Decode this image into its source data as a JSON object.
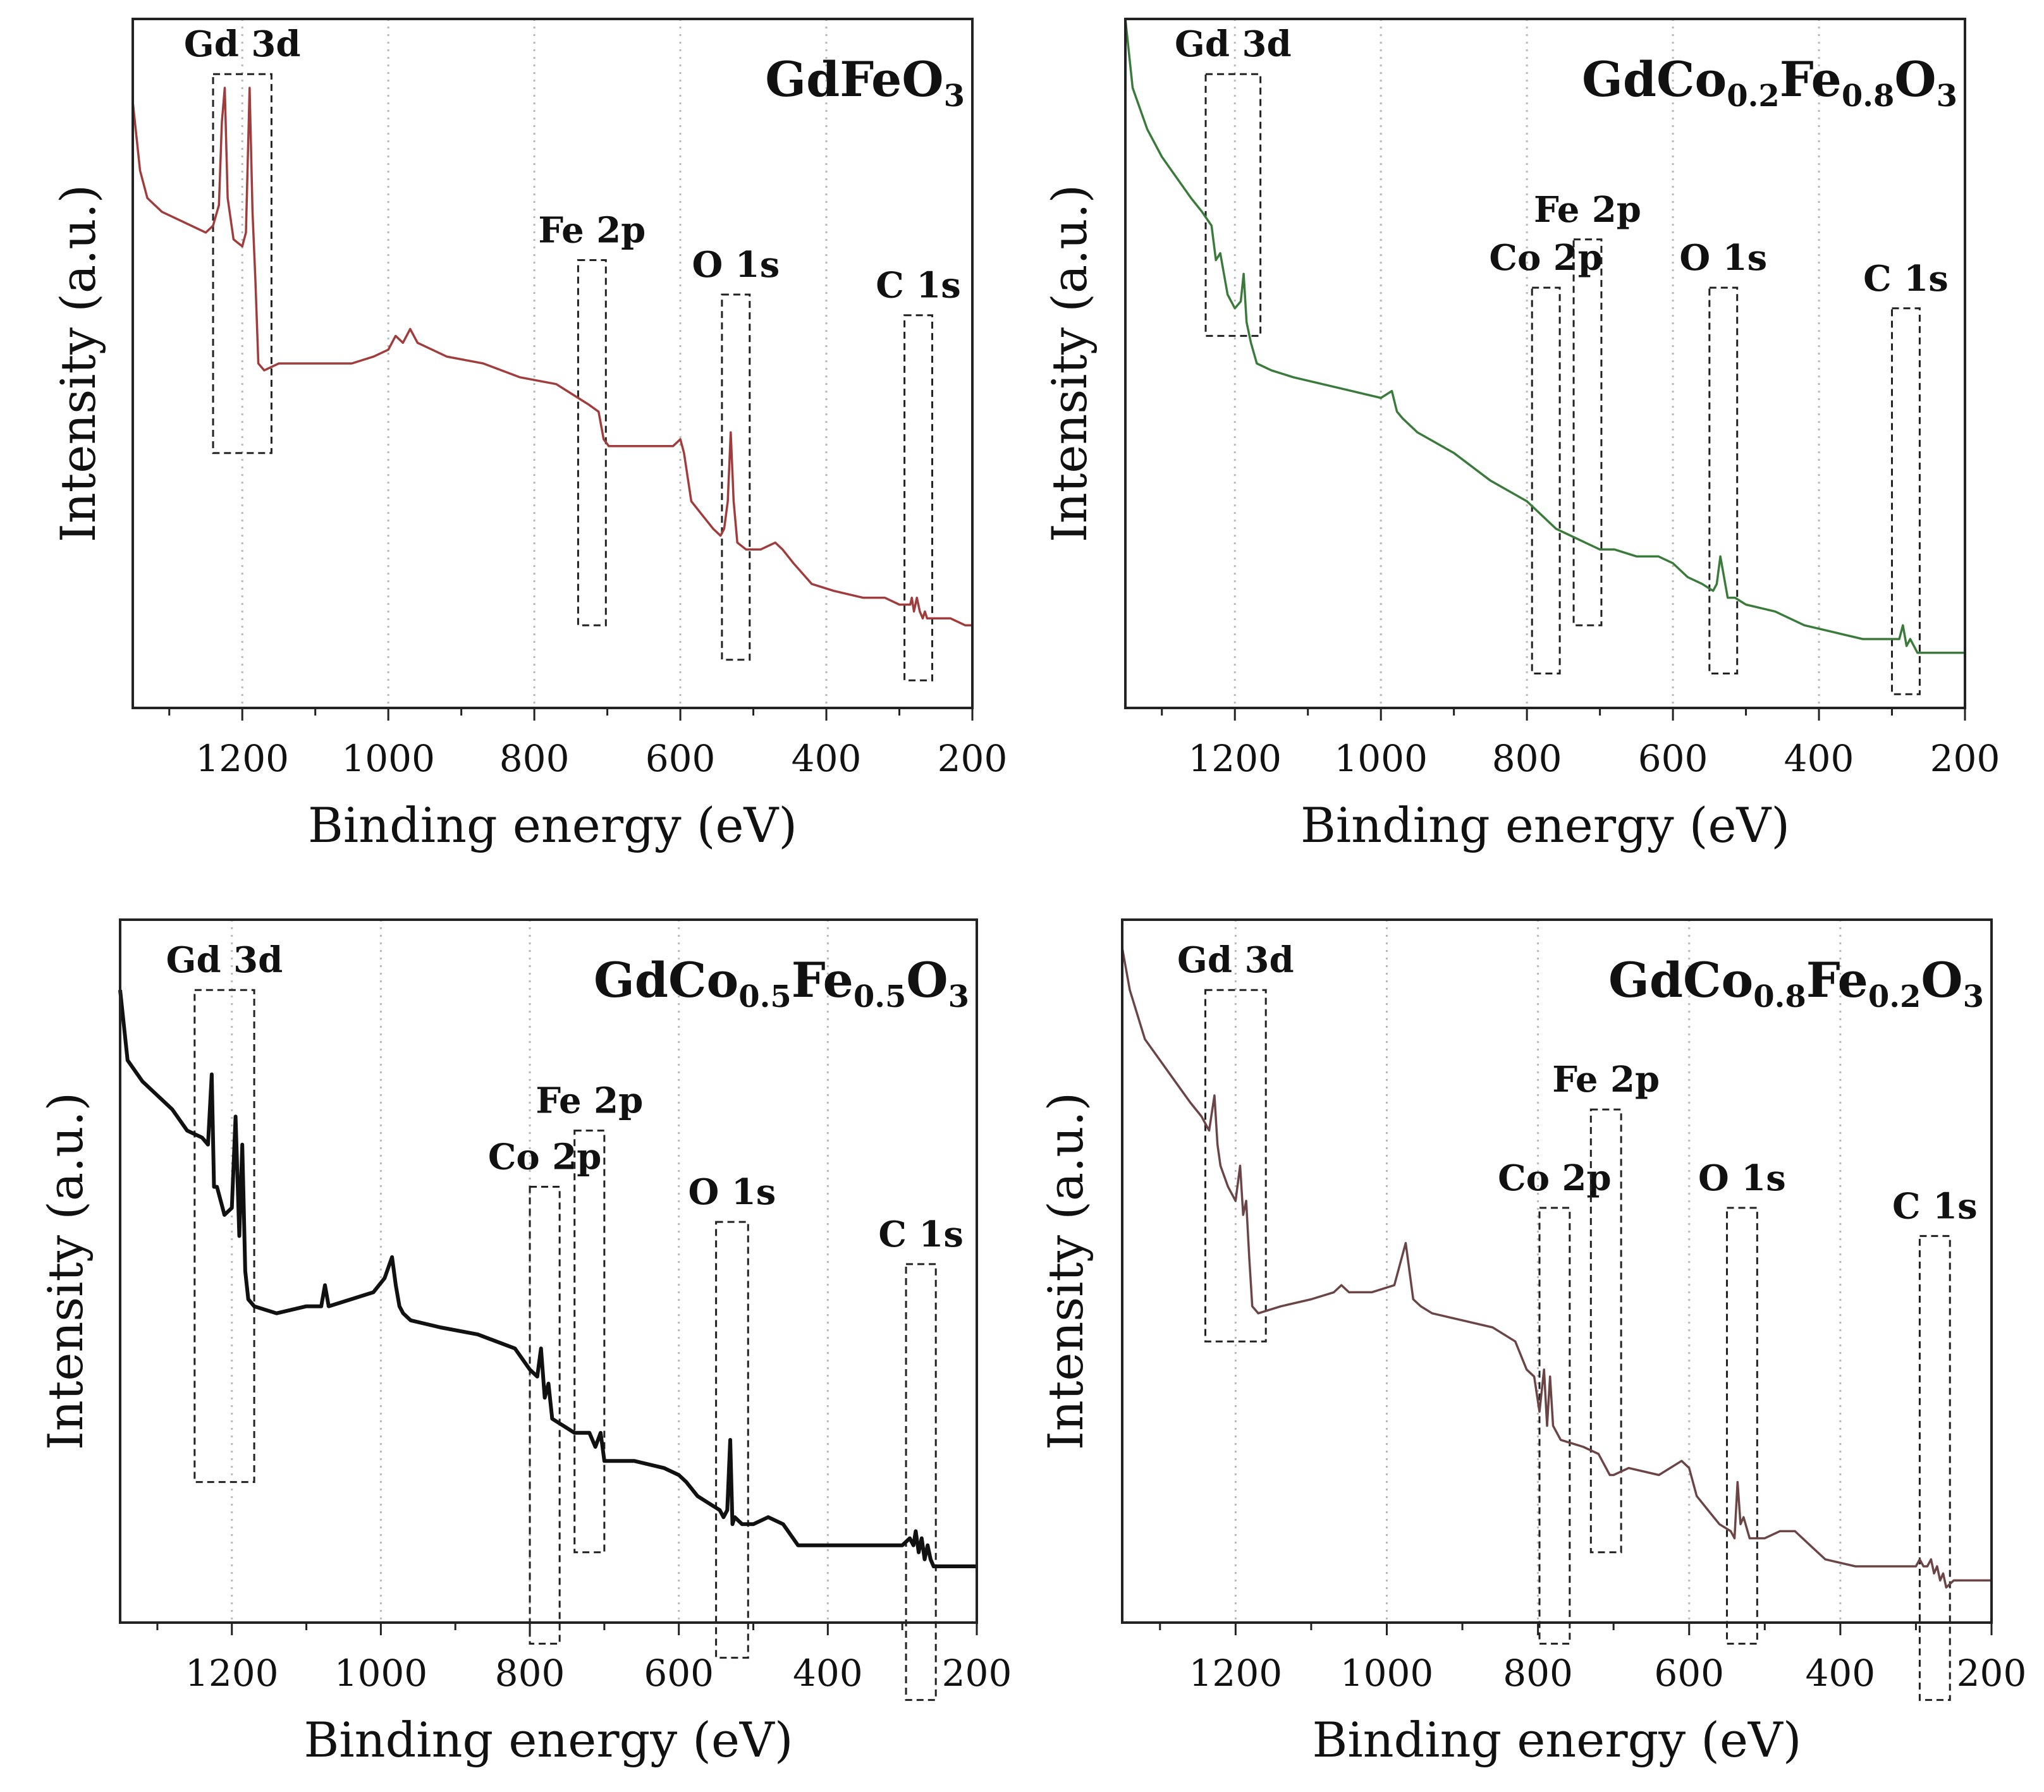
{
  "figure": {
    "xlabel": "Binding energy (eV)",
    "ylabel": "Intensity (a.u.)"
  },
  "chart_data": [
    {
      "type": "line",
      "title": "GdFeO3",
      "title_parts": [
        [
          "Gd",
          ""
        ],
        [
          "FeO",
          ""
        ],
        [
          "3",
          "sub"
        ]
      ],
      "color": "#a03c3c",
      "xlabel": "Binding energy (eV)",
      "ylabel": "Intensity (a.u.)",
      "xlim": [
        1350,
        200
      ],
      "ylim": [
        0,
        100
      ],
      "xticks": [
        1200,
        1000,
        800,
        600,
        400,
        200
      ],
      "grid": "vertical dotted",
      "x": [
        1350,
        1340,
        1330,
        1310,
        1290,
        1270,
        1250,
        1240,
        1232,
        1228,
        1224,
        1220,
        1212,
        1200,
        1195,
        1190,
        1186,
        1182,
        1178,
        1170,
        1150,
        1100,
        1050,
        1020,
        1000,
        990,
        980,
        970,
        960,
        920,
        870,
        820,
        770,
        740,
        725,
        712,
        705,
        698,
        660,
        630,
        610,
        600,
        595,
        585,
        570,
        555,
        545,
        540,
        535,
        531,
        527,
        522,
        510,
        490,
        470,
        460,
        445,
        420,
        390,
        350,
        320,
        300,
        290,
        285,
        283,
        280,
        276,
        272,
        268,
        265,
        262,
        258,
        250,
        230,
        210,
        200
      ],
      "values": [
        88,
        78,
        74,
        72,
        71,
        70,
        69,
        70,
        73,
        85,
        90,
        74,
        68,
        67,
        69,
        90,
        72,
        62,
        50,
        49,
        50,
        50,
        50,
        51,
        52,
        54,
        53,
        55,
        53,
        51,
        50,
        48,
        47,
        45,
        44,
        43,
        39,
        38,
        38,
        38,
        38,
        39,
        37,
        30,
        28,
        26,
        25,
        26,
        30,
        40,
        30,
        24,
        23,
        23,
        24,
        23,
        21,
        18,
        17,
        16,
        16,
        15,
        15,
        15,
        16,
        14,
        16,
        14,
        13,
        14,
        13,
        13,
        13,
        13,
        12,
        12
      ],
      "annotations": [
        {
          "label": "Gd 3d",
          "x_range": [
            1240,
            1160
          ],
          "y_range": [
            37,
            92
          ]
        },
        {
          "label": "Fe 2p",
          "x_range": [
            740,
            702
          ],
          "y_range": [
            12,
            65
          ]
        },
        {
          "label": "O 1s",
          "x_range": [
            543,
            505
          ],
          "y_range": [
            7,
            60
          ]
        },
        {
          "label": "C 1s",
          "x_range": [
            293,
            255
          ],
          "y_range": [
            4,
            57
          ]
        }
      ]
    },
    {
      "type": "line",
      "title": "GdCo0.2Fe0.8O3",
      "title_parts": [
        [
          "GdCo",
          ""
        ],
        [
          "0.2",
          "sub"
        ],
        [
          "Fe",
          ""
        ],
        [
          "0.8",
          "sub"
        ],
        [
          "O",
          ""
        ],
        [
          "3",
          "sub"
        ]
      ],
      "color": "#3a7a3a",
      "xlabel": "Binding energy (eV)",
      "ylabel": "Intensity (a.u.)",
      "xlim": [
        1350,
        200
      ],
      "ylim": [
        0,
        100
      ],
      "xticks": [
        1200,
        1000,
        800,
        600,
        400,
        200
      ],
      "grid": "vertical dotted",
      "x": [
        1350,
        1340,
        1320,
        1300,
        1280,
        1260,
        1245,
        1232,
        1226,
        1220,
        1210,
        1200,
        1192,
        1188,
        1184,
        1178,
        1170,
        1150,
        1120,
        1080,
        1040,
        1000,
        985,
        978,
        970,
        950,
        900,
        850,
        800,
        780,
        760,
        740,
        720,
        700,
        680,
        650,
        620,
        600,
        580,
        560,
        545,
        540,
        535,
        530,
        525,
        515,
        500,
        460,
        420,
        380,
        340,
        300,
        290,
        285,
        280,
        275,
        270,
        265,
        250,
        230,
        200
      ],
      "values": [
        100,
        90,
        84,
        80,
        77,
        74,
        72,
        70,
        65,
        66,
        60,
        58,
        59,
        63,
        56,
        53,
        50,
        49,
        48,
        47,
        46,
        45,
        46,
        43,
        42,
        40,
        37,
        33,
        30,
        28,
        26,
        25,
        24,
        23,
        23,
        22,
        22,
        21,
        19,
        18,
        17,
        18,
        22,
        19,
        16,
        16,
        15,
        14,
        12,
        11,
        10,
        10,
        10,
        12,
        9,
        10,
        9,
        8,
        8,
        8,
        8
      ],
      "annotations": [
        {
          "label": "Gd 3d",
          "x_range": [
            1240,
            1165
          ],
          "y_range": [
            54,
            92
          ]
        },
        {
          "label": "Co 2p",
          "x_range": [
            793,
            755
          ],
          "y_range": [
            5,
            61
          ]
        },
        {
          "label": "Fe 2p",
          "x_range": [
            736,
            698
          ],
          "y_range": [
            12,
            68
          ]
        },
        {
          "label": "O 1s",
          "x_range": [
            550,
            512
          ],
          "y_range": [
            5,
            61
          ]
        },
        {
          "label": "C 1s",
          "x_range": [
            300,
            262
          ],
          "y_range": [
            2,
            58
          ]
        }
      ]
    },
    {
      "type": "line",
      "title": "GdCo0.5Fe0.5O3",
      "title_parts": [
        [
          "GdCo",
          ""
        ],
        [
          "0.5",
          "sub"
        ],
        [
          "Fe",
          ""
        ],
        [
          "0.5",
          "sub"
        ],
        [
          "O",
          ""
        ],
        [
          "3",
          "sub"
        ]
      ],
      "color": "#111111",
      "xlabel": "Binding energy (eV)",
      "ylabel": "Intensity (a.u.)",
      "xlim": [
        1350,
        200
      ],
      "ylim": [
        0,
        100
      ],
      "xticks": [
        1200,
        1000,
        800,
        600,
        400,
        200
      ],
      "grid": "vertical dotted",
      "x": [
        1350,
        1340,
        1320,
        1300,
        1280,
        1260,
        1240,
        1232,
        1227,
        1224,
        1220,
        1210,
        1200,
        1195,
        1190,
        1186,
        1182,
        1178,
        1170,
        1140,
        1100,
        1080,
        1075,
        1070,
        1040,
        1010,
        995,
        985,
        980,
        975,
        970,
        960,
        920,
        870,
        820,
        800,
        790,
        785,
        780,
        775,
        770,
        740,
        720,
        712,
        705,
        700,
        660,
        620,
        600,
        590,
        575,
        560,
        545,
        540,
        535,
        531,
        528,
        525,
        515,
        500,
        480,
        460,
        440,
        410,
        380,
        340,
        300,
        290,
        285,
        282,
        278,
        274,
        270,
        266,
        262,
        258,
        240,
        200
      ],
      "values": [
        90,
        80,
        77,
        75,
        73,
        70,
        69,
        68,
        78,
        62,
        62,
        58,
        59,
        72,
        55,
        68,
        50,
        46,
        45,
        44,
        45,
        45,
        48,
        45,
        46,
        47,
        49,
        52,
        48,
        45,
        44,
        43,
        42,
        41,
        39,
        36,
        35,
        39,
        32,
        34,
        29,
        27,
        27,
        25,
        27,
        23,
        23,
        22,
        21,
        20,
        18,
        17,
        16,
        15,
        16,
        26,
        14,
        15,
        14,
        14,
        15,
        14,
        11,
        11,
        11,
        11,
        11,
        12,
        11,
        13,
        10,
        12,
        9,
        11,
        9,
        8,
        8,
        8
      ],
      "annotations": [
        {
          "label": "Gd 3d",
          "x_range": [
            1250,
            1170
          ],
          "y_range": [
            20,
            90
          ]
        },
        {
          "label": "Co 2p",
          "x_range": [
            800,
            760
          ],
          "y_range": [
            -3,
            62
          ]
        },
        {
          "label": "Fe 2p",
          "x_range": [
            740,
            700
          ],
          "y_range": [
            10,
            70
          ]
        },
        {
          "label": "O 1s",
          "x_range": [
            550,
            507
          ],
          "y_range": [
            -5,
            57
          ]
        },
        {
          "label": "C 1s",
          "x_range": [
            295,
            255
          ],
          "y_range": [
            -11,
            51
          ]
        }
      ]
    },
    {
      "type": "line",
      "title": "GdCo0.8Fe0.2O3",
      "title_parts": [
        [
          "GdCo",
          ""
        ],
        [
          "0.8",
          "sub"
        ],
        [
          "Fe",
          ""
        ],
        [
          "0.2",
          "sub"
        ],
        [
          "O",
          ""
        ],
        [
          "3",
          "sub"
        ]
      ],
      "color": "#6b4545",
      "xlabel": "Binding energy (eV)",
      "ylabel": "Intensity (a.u.)",
      "xlim": [
        1350,
        200
      ],
      "ylim": [
        0,
        100
      ],
      "xticks": [
        1200,
        1000,
        800,
        600,
        400,
        200
      ],
      "grid": "vertical dotted",
      "x": [
        1350,
        1340,
        1320,
        1300,
        1280,
        1260,
        1245,
        1235,
        1228,
        1224,
        1220,
        1210,
        1200,
        1194,
        1190,
        1186,
        1182,
        1178,
        1170,
        1140,
        1100,
        1070,
        1060,
        1050,
        1020,
        990,
        975,
        965,
        955,
        940,
        900,
        860,
        830,
        815,
        805,
        798,
        792,
        788,
        784,
        780,
        770,
        740,
        720,
        705,
        700,
        680,
        640,
        610,
        600,
        590,
        575,
        560,
        545,
        540,
        536,
        532,
        528,
        520,
        500,
        480,
        460,
        440,
        420,
        380,
        340,
        300,
        295,
        290,
        285,
        280,
        276,
        272,
        268,
        264,
        260,
        250,
        230,
        200
      ],
      "values": [
        96,
        90,
        83,
        80,
        77,
        74,
        72,
        70,
        75,
        68,
        65,
        62,
        60,
        65,
        58,
        60,
        52,
        45,
        44,
        45,
        46,
        47,
        48,
        47,
        47,
        48,
        54,
        46,
        45,
        44,
        43,
        42,
        40,
        36,
        35,
        30,
        36,
        28,
        35,
        28,
        26,
        25,
        24,
        21,
        21,
        22,
        21,
        23,
        22,
        18,
        16,
        14,
        13,
        12,
        20,
        14,
        15,
        12,
        12,
        13,
        13,
        11,
        9,
        8,
        8,
        8,
        9,
        8,
        8,
        9,
        7,
        8,
        6,
        7,
        5,
        6,
        6,
        6
      ],
      "annotations": [
        {
          "label": "Gd 3d",
          "x_range": [
            1240,
            1160
          ],
          "y_range": [
            40,
            90
          ]
        },
        {
          "label": "Co 2p",
          "x_range": [
            798,
            758
          ],
          "y_range": [
            -3,
            59
          ]
        },
        {
          "label": "Fe 2p",
          "x_range": [
            730,
            690
          ],
          "y_range": [
            10,
            73
          ]
        },
        {
          "label": "O 1s",
          "x_range": [
            550,
            510
          ],
          "y_range": [
            -3,
            59
          ]
        },
        {
          "label": "C 1s",
          "x_range": [
            295,
            255
          ],
          "y_range": [
            -11,
            55
          ]
        }
      ]
    }
  ]
}
